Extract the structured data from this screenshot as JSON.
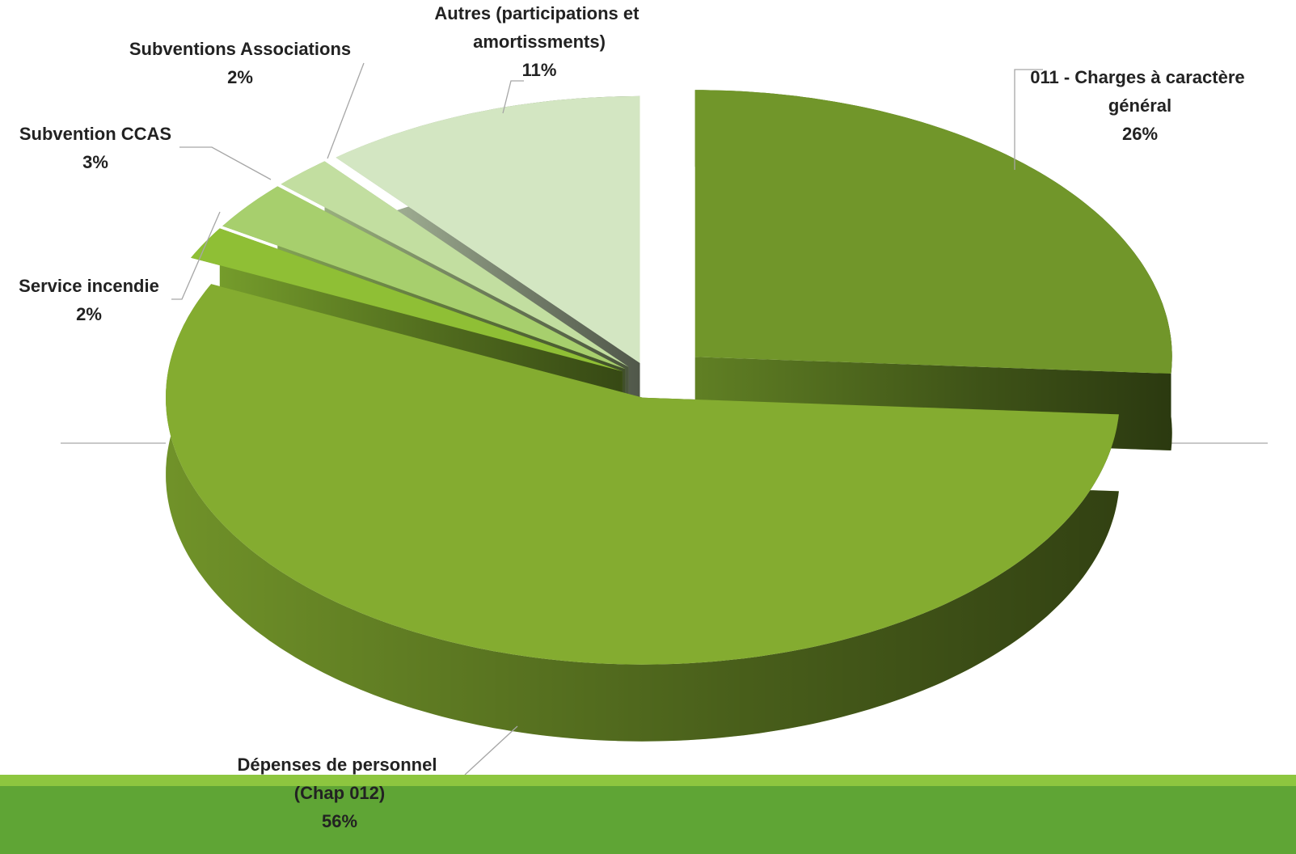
{
  "chart_data": {
    "type": "pie",
    "categories": [
      "011 - Charges à caractère général",
      "Dépenses de personnel (Chap 012)",
      "Service incendie",
      "Subvention CCAS",
      "Subventions Associations",
      "Autres (participations et amortissments)"
    ],
    "values": [
      26,
      56,
      2,
      3,
      2,
      11
    ],
    "value_labels": [
      "26%",
      "56%",
      "2%",
      "3%",
      "2%",
      "11%"
    ],
    "colors": [
      "#71962a",
      "#84ac30",
      "#8fbf35",
      "#a7cf6d",
      "#c2dea0",
      "#d3e6c2"
    ]
  }
}
